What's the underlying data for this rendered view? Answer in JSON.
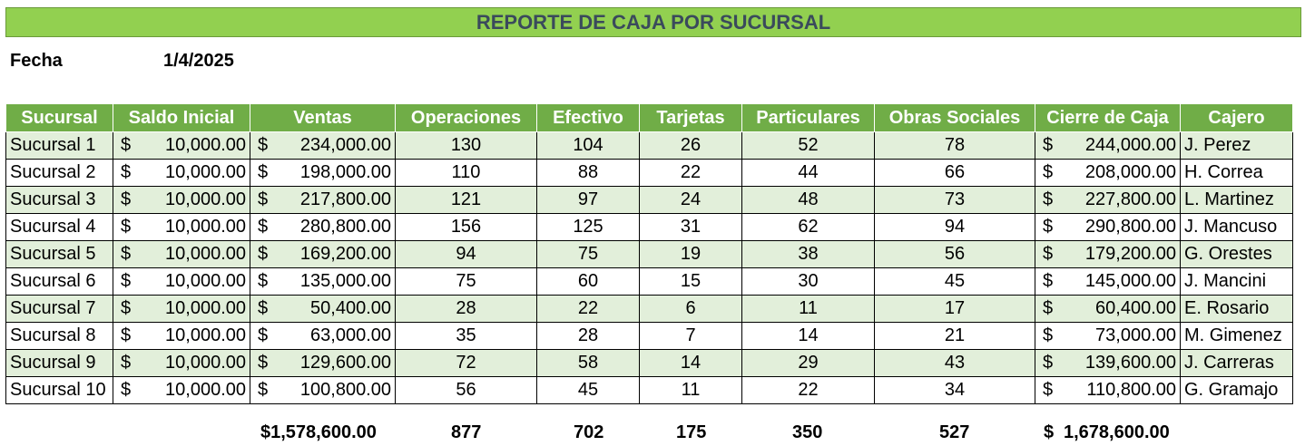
{
  "title": "REPORTE DE CAJA POR SUCURSAL",
  "fecha": {
    "label": "Fecha",
    "value": "1/4/2025"
  },
  "headers": [
    "Sucursal",
    "Saldo Inicial",
    "Ventas",
    "Operaciones",
    "Efectivo",
    "Tarjetas",
    "Particulares",
    "Obras Sociales",
    "Cierre de Caja",
    "Cajero"
  ],
  "currency_symbol": "$",
  "rows": [
    {
      "sucursal": "Sucursal 1",
      "saldo": "10,000.00",
      "ventas": "234,000.00",
      "operaciones": "130",
      "efectivo": "104",
      "tarjetas": "26",
      "particulares": "52",
      "obras": "78",
      "cierre": "244,000.00",
      "cajero": "J. Perez"
    },
    {
      "sucursal": "Sucursal 2",
      "saldo": "10,000.00",
      "ventas": "198,000.00",
      "operaciones": "110",
      "efectivo": "88",
      "tarjetas": "22",
      "particulares": "44",
      "obras": "66",
      "cierre": "208,000.00",
      "cajero": "H. Correa"
    },
    {
      "sucursal": "Sucursal 3",
      "saldo": "10,000.00",
      "ventas": "217,800.00",
      "operaciones": "121",
      "efectivo": "97",
      "tarjetas": "24",
      "particulares": "48",
      "obras": "73",
      "cierre": "227,800.00",
      "cajero": "L. Martinez"
    },
    {
      "sucursal": "Sucursal 4",
      "saldo": "10,000.00",
      "ventas": "280,800.00",
      "operaciones": "156",
      "efectivo": "125",
      "tarjetas": "31",
      "particulares": "62",
      "obras": "94",
      "cierre": "290,800.00",
      "cajero": "J. Mancuso"
    },
    {
      "sucursal": "Sucursal 5",
      "saldo": "10,000.00",
      "ventas": "169,200.00",
      "operaciones": "94",
      "efectivo": "75",
      "tarjetas": "19",
      "particulares": "38",
      "obras": "56",
      "cierre": "179,200.00",
      "cajero": "G. Orestes"
    },
    {
      "sucursal": "Sucursal 6",
      "saldo": "10,000.00",
      "ventas": "135,000.00",
      "operaciones": "75",
      "efectivo": "60",
      "tarjetas": "15",
      "particulares": "30",
      "obras": "45",
      "cierre": "145,000.00",
      "cajero": "J. Mancini"
    },
    {
      "sucursal": "Sucursal 7",
      "saldo": "10,000.00",
      "ventas": "50,400.00",
      "operaciones": "28",
      "efectivo": "22",
      "tarjetas": "6",
      "particulares": "11",
      "obras": "17",
      "cierre": "60,400.00",
      "cajero": "E. Rosario"
    },
    {
      "sucursal": "Sucursal 8",
      "saldo": "10,000.00",
      "ventas": "63,000.00",
      "operaciones": "35",
      "efectivo": "28",
      "tarjetas": "7",
      "particulares": "14",
      "obras": "21",
      "cierre": "73,000.00",
      "cajero": "M. Gimenez"
    },
    {
      "sucursal": "Sucursal 9",
      "saldo": "10,000.00",
      "ventas": "129,600.00",
      "operaciones": "72",
      "efectivo": "58",
      "tarjetas": "14",
      "particulares": "29",
      "obras": "43",
      "cierre": "139,600.00",
      "cajero": "J. Carreras"
    },
    {
      "sucursal": "Sucursal 10",
      "saldo": "10,000.00",
      "ventas": "100,800.00",
      "operaciones": "56",
      "efectivo": "45",
      "tarjetas": "11",
      "particulares": "22",
      "obras": "34",
      "cierre": "110,800.00",
      "cajero": "G. Gramajo"
    }
  ],
  "totals": {
    "ventas": "$1,578,600.00",
    "operaciones": "877",
    "efectivo": "702",
    "tarjetas": "175",
    "particulares": "350",
    "obras": "527",
    "cierre_symbol": "$",
    "cierre": "1,678,600.00"
  },
  "colors": {
    "title_bg": "#92d050",
    "header_bg": "#70ad47",
    "band_bg": "#e2efda",
    "title_text": "#3a4a5c"
  }
}
